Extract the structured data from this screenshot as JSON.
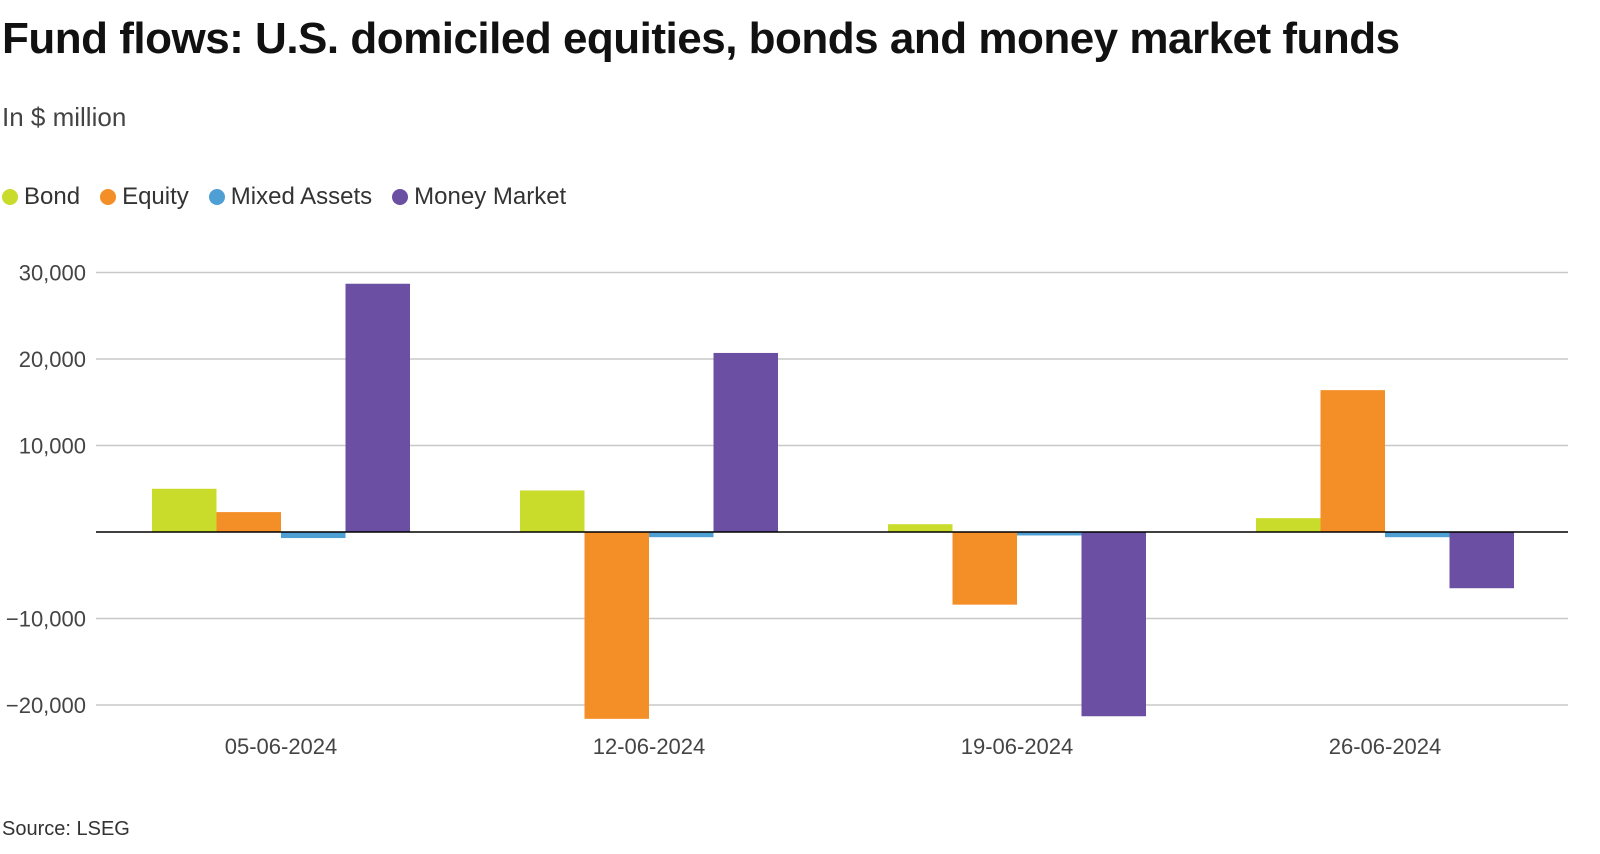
{
  "header": {
    "title": "Fund flows: U.S. domiciled equities, bonds and money market funds",
    "subtitle": "In $ million"
  },
  "footer": {
    "source": "Source: LSEG"
  },
  "chart_data": {
    "type": "bar",
    "title": "Fund flows: U.S. domiciled equities, bonds and money market funds",
    "subtitle": "In $ million",
    "categories": [
      "05-06-2024",
      "12-06-2024",
      "19-06-2024",
      "26-06-2024"
    ],
    "series": [
      {
        "name": "Bond",
        "color": "#c9dc2b",
        "values": [
          5000,
          4800,
          900,
          1600
        ]
      },
      {
        "name": "Equity",
        "color": "#f48e26",
        "values": [
          2300,
          -21600,
          -8400,
          16400
        ]
      },
      {
        "name": "Mixed Assets",
        "color": "#4e9fd4",
        "values": [
          -700,
          -600,
          -400,
          -600
        ]
      },
      {
        "name": "Money Market",
        "color": "#6b4fa2",
        "values": [
          28700,
          20700,
          -21300,
          -6500
        ]
      }
    ],
    "ylim": [
      -21600,
      30000
    ],
    "yticks": [
      30000,
      20000,
      10000,
      -10000,
      -20000
    ],
    "ytick_labels": [
      "30,000",
      "20,000",
      "10,000",
      "−10,000",
      "−20,000"
    ],
    "grid": true,
    "legend_position": "top-left"
  }
}
